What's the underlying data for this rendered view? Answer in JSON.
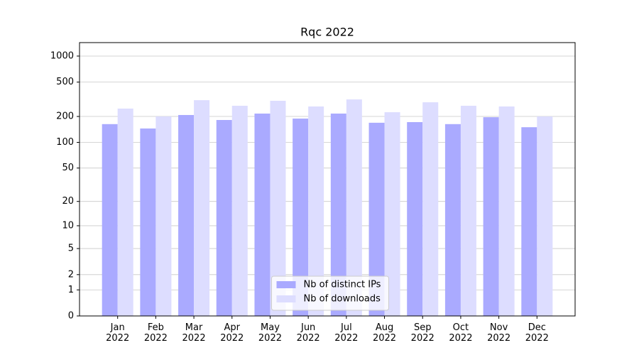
{
  "chart_data": {
    "type": "bar",
    "title": "Rqc 2022",
    "categories": [
      "Jan 2022",
      "Feb 2022",
      "Mar 2022",
      "Apr 2022",
      "May 2022",
      "Jun 2022",
      "Jul 2022",
      "Aug 2022",
      "Sep 2022",
      "Oct 2022",
      "Nov 2022",
      "Dec 2022"
    ],
    "series": [
      {
        "name": "Nb of distinct IPs",
        "color": "#aaaaff",
        "values": [
          163,
          145,
          208,
          182,
          216,
          189,
          216,
          169,
          172,
          163,
          196,
          150
        ]
      },
      {
        "name": "Nb of downloads",
        "color": "#ddddff",
        "values": [
          247,
          200,
          309,
          266,
          304,
          261,
          315,
          224,
          292,
          266,
          261,
          200
        ]
      }
    ],
    "scale": "log1p",
    "ylim": [
      0,
      1431
    ],
    "yticks": [
      0,
      1,
      2,
      5,
      10,
      20,
      50,
      100,
      200,
      500,
      1000
    ],
    "grid": true,
    "legend": "lower center"
  }
}
